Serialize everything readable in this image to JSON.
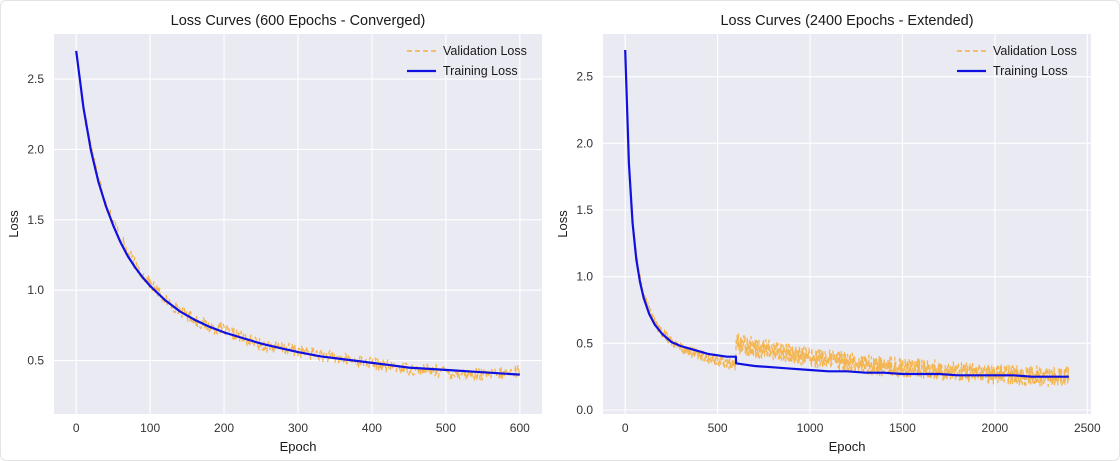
{
  "chart_data": [
    {
      "type": "line",
      "title": "Loss Curves (600 Epochs - Converged)",
      "xlabel": "Epoch",
      "ylabel": "Loss",
      "xlim": [
        -30,
        630
      ],
      "ylim": [
        0.12,
        2.82
      ],
      "xticks": [
        0,
        100,
        200,
        300,
        400,
        500,
        600
      ],
      "yticks": [
        0.5,
        1.0,
        1.5,
        2.0,
        2.5
      ],
      "ytick_labels": [
        "0.5",
        "1.0",
        "1.5",
        "2.0",
        "2.5"
      ],
      "grid": true,
      "legend": "upper right",
      "series": [
        {
          "name": "Validation Loss",
          "style": "dashed",
          "color": "#f5b041",
          "x": [
            0,
            10,
            20,
            30,
            40,
            50,
            60,
            70,
            80,
            90,
            100,
            120,
            140,
            160,
            180,
            200,
            225,
            250,
            275,
            300,
            330,
            360,
            390,
            420,
            450,
            480,
            510,
            540,
            570,
            600
          ],
          "values": [
            2.7,
            2.28,
            2.02,
            1.8,
            1.62,
            1.49,
            1.37,
            1.27,
            1.18,
            1.11,
            1.05,
            0.93,
            0.86,
            0.79,
            0.74,
            0.72,
            0.66,
            0.61,
            0.59,
            0.57,
            0.54,
            0.51,
            0.49,
            0.46,
            0.44,
            0.43,
            0.41,
            0.4,
            0.4,
            0.43
          ]
        },
        {
          "name": "Training Loss",
          "style": "solid",
          "color": "#1010e0",
          "x": [
            0,
            10,
            20,
            30,
            40,
            50,
            60,
            70,
            80,
            90,
            100,
            120,
            140,
            160,
            180,
            200,
            225,
            250,
            275,
            300,
            330,
            360,
            390,
            420,
            450,
            480,
            510,
            540,
            570,
            600
          ],
          "values": [
            2.7,
            2.29,
            1.99,
            1.77,
            1.6,
            1.46,
            1.34,
            1.24,
            1.16,
            1.09,
            1.03,
            0.93,
            0.85,
            0.79,
            0.74,
            0.7,
            0.66,
            0.62,
            0.59,
            0.56,
            0.53,
            0.51,
            0.49,
            0.47,
            0.45,
            0.44,
            0.43,
            0.42,
            0.41,
            0.4
          ]
        }
      ]
    },
    {
      "type": "line",
      "title": "Loss Curves (2400 Epochs - Extended)",
      "xlabel": "Epoch",
      "ylabel": "Loss",
      "xlim": [
        -120,
        2520
      ],
      "ylim": [
        -0.03,
        2.82
      ],
      "xticks": [
        0,
        500,
        1000,
        1500,
        2000,
        2500
      ],
      "yticks": [
        0.0,
        0.5,
        1.0,
        1.5,
        2.0,
        2.5
      ],
      "ytick_labels": [
        "0.0",
        "0.5",
        "1.0",
        "1.5",
        "2.0",
        "2.5"
      ],
      "grid": true,
      "legend": "upper right",
      "series": [
        {
          "name": "Validation Loss",
          "style": "dashed",
          "color": "#f5b041",
          "x": [
            0,
            20,
            40,
            60,
            80,
            100,
            130,
            160,
            200,
            250,
            300,
            350,
            400,
            450,
            500,
            550,
            599,
            600,
            650,
            700,
            800,
            900,
            1000,
            1100,
            1200,
            1300,
            1400,
            1500,
            1600,
            1700,
            1800,
            1900,
            2000,
            2100,
            2200,
            2300,
            2400
          ],
          "values": [
            2.7,
            1.85,
            1.42,
            1.15,
            0.98,
            0.86,
            0.75,
            0.66,
            0.58,
            0.52,
            0.47,
            0.44,
            0.41,
            0.39,
            0.37,
            0.35,
            0.34,
            0.5,
            0.49,
            0.47,
            0.45,
            0.42,
            0.4,
            0.38,
            0.36,
            0.34,
            0.33,
            0.32,
            0.31,
            0.3,
            0.29,
            0.28,
            0.27,
            0.26,
            0.26,
            0.25,
            0.25
          ]
        },
        {
          "name": "Training Loss",
          "style": "solid",
          "color": "#1010e0",
          "x": [
            0,
            20,
            40,
            60,
            80,
            100,
            130,
            160,
            200,
            250,
            300,
            350,
            400,
            450,
            500,
            550,
            599,
            600,
            650,
            700,
            800,
            900,
            1000,
            1100,
            1200,
            1300,
            1400,
            1500,
            1600,
            1700,
            1800,
            1900,
            2000,
            2100,
            2200,
            2300,
            2400
          ],
          "values": [
            2.7,
            1.85,
            1.4,
            1.13,
            0.96,
            0.84,
            0.72,
            0.64,
            0.57,
            0.51,
            0.48,
            0.46,
            0.44,
            0.42,
            0.41,
            0.4,
            0.4,
            0.35,
            0.34,
            0.33,
            0.32,
            0.31,
            0.3,
            0.29,
            0.29,
            0.28,
            0.28,
            0.27,
            0.27,
            0.27,
            0.26,
            0.26,
            0.26,
            0.26,
            0.25,
            0.25,
            0.25
          ]
        }
      ]
    }
  ]
}
